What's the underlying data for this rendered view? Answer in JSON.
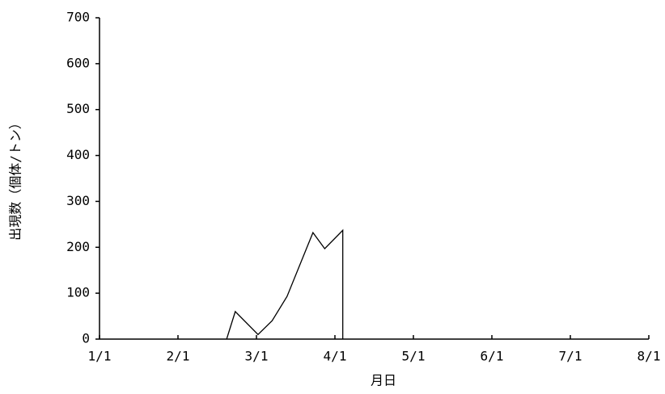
{
  "chart_data": {
    "type": "line",
    "x_label": "月日",
    "y_label": "出現数（個体/トン）",
    "x": [
      1.62,
      1.73,
      2.02,
      2.2,
      2.39,
      2.72,
      2.87,
      3.1,
      3.1
    ],
    "series": [
      {
        "color": "#000000",
        "values": [
          0,
          60,
          10,
          40,
          93,
          232,
          197,
          237,
          0
        ]
      }
    ],
    "xlim": [
      0,
      7
    ],
    "xticks": [
      {
        "value": 0,
        "label": "1/1"
      },
      {
        "value": 1,
        "label": "2/1"
      },
      {
        "value": 2,
        "label": "3/1"
      },
      {
        "value": 3,
        "label": "4/1"
      },
      {
        "value": 4,
        "label": "5/1"
      },
      {
        "value": 5,
        "label": "6/1"
      },
      {
        "value": 6,
        "label": "7/1"
      },
      {
        "value": 7,
        "label": "8/1"
      }
    ],
    "ylim": [
      0,
      700
    ],
    "yticks": [
      0,
      100,
      200,
      300,
      400,
      500,
      600,
      700
    ]
  }
}
